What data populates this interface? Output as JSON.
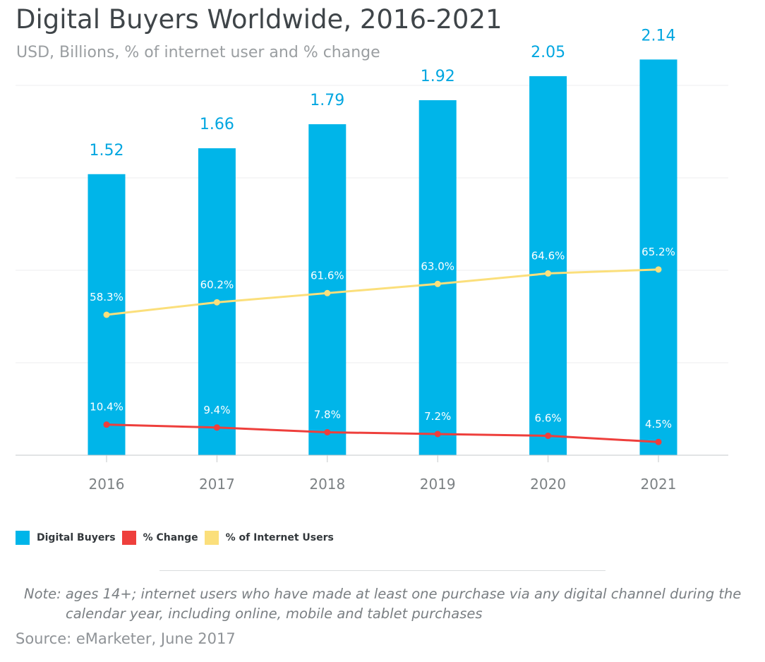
{
  "title": "Digital Buyers Worldwide, 2016-2021",
  "subtitle": "USD, Billions, % of internet user and % change",
  "colors": {
    "bars": "#00b5e9",
    "change_line": "#ee3f3c",
    "internet_users_line": "#fbdf7b",
    "bar_label": "#00a6e0",
    "axis_label": "#7c8184"
  },
  "chart_data": {
    "type": "bar",
    "categories": [
      "2016",
      "2017",
      "2018",
      "2019",
      "2020",
      "2021"
    ],
    "ylim": [
      0,
      2.5
    ],
    "grid": true,
    "series": [
      {
        "name": "Digital Buyers",
        "type": "bar",
        "values": [
          1.52,
          1.66,
          1.79,
          1.92,
          2.05,
          2.14
        ],
        "labels": [
          "1.52",
          "1.66",
          "1.79",
          "1.92",
          "2.05",
          "2.14"
        ]
      },
      {
        "name": "% Change",
        "type": "line",
        "values": [
          10.4,
          9.4,
          7.8,
          7.2,
          6.6,
          4.5
        ],
        "labels": [
          "10.4%",
          "9.4%",
          "7.8%",
          "7.2%",
          "6.6%",
          "4.5%"
        ]
      },
      {
        "name": "% of Internet Users",
        "type": "line",
        "values": [
          58.3,
          60.2,
          61.6,
          63.0,
          64.6,
          65.2
        ],
        "labels": [
          "58.3%",
          "60.2%",
          "61.6%",
          "63.0%",
          "64.6%",
          "65.2%"
        ]
      }
    ],
    "legend_position": "bottom-left"
  },
  "legend": {
    "digital_buyers": "Digital Buyers",
    "pct_change": "% Change",
    "pct_internet_users": "% of Internet Users"
  },
  "note": {
    "line1": "Note: ages 14+; internet users who have made at least one purchase via any digital channel during the",
    "line2": "calendar year, including online, mobile and tablet purchases"
  },
  "source": "Source: eMarketer, June 2017"
}
